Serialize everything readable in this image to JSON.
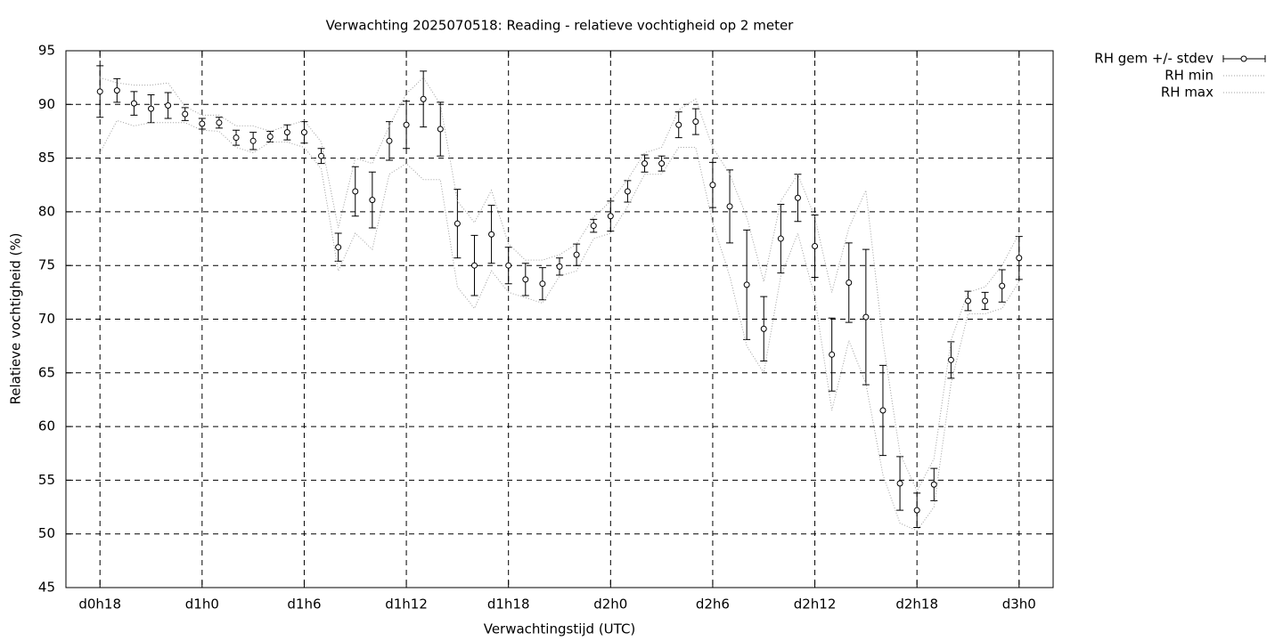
{
  "chart_data": {
    "type": "line",
    "title": "Verwachting 2025070518: Reading - relatieve vochtigheid op 2 meter",
    "xlabel": "Verwachtingstijd (UTC)",
    "ylabel": "Relatieve vochtigheid (%)",
    "x": [
      18,
      19,
      20,
      21,
      22,
      23,
      24,
      25,
      26,
      27,
      28,
      29,
      30,
      31,
      32,
      33,
      34,
      35,
      36,
      37,
      38,
      39,
      40,
      41,
      42,
      43,
      44,
      45,
      46,
      47,
      48,
      49,
      50,
      51,
      52,
      53,
      54,
      55,
      56,
      57,
      58,
      59,
      60,
      61,
      62,
      63,
      64,
      65,
      66,
      67,
      68,
      69,
      70,
      71,
      72
    ],
    "series": [
      {
        "name": "RH gem +/- stdev",
        "color": "#000000",
        "style": "errorbars",
        "values": [
          91.2,
          91.3,
          90.1,
          89.6,
          89.9,
          89.1,
          88.2,
          88.3,
          86.9,
          86.6,
          87.0,
          87.4,
          87.4,
          85.2,
          76.7,
          81.9,
          81.1,
          86.6,
          88.1,
          90.5,
          87.7,
          78.9,
          75.0,
          77.9,
          75.0,
          73.7,
          73.3,
          74.9,
          76.0,
          78.7,
          79.6,
          81.9,
          84.5,
          84.5,
          88.1,
          88.4,
          82.5,
          80.5,
          73.2,
          69.1,
          77.5,
          81.3,
          76.8,
          66.7,
          73.4,
          70.2,
          61.5,
          54.7,
          52.2,
          54.6,
          66.2,
          71.7,
          71.7,
          73.1,
          75.7
        ],
        "errors": [
          2.4,
          1.1,
          1.1,
          1.3,
          1.2,
          0.6,
          0.5,
          0.5,
          0.7,
          0.8,
          0.5,
          0.7,
          1.0,
          0.7,
          1.3,
          2.3,
          2.6,
          1.8,
          2.2,
          2.6,
          2.5,
          3.2,
          2.8,
          2.7,
          1.7,
          1.5,
          1.5,
          0.8,
          1.0,
          0.6,
          1.4,
          1.0,
          0.8,
          0.7,
          1.2,
          1.2,
          2.1,
          3.4,
          5.1,
          3.0,
          3.2,
          2.2,
          2.9,
          3.4,
          3.7,
          6.3,
          4.2,
          2.5,
          1.6,
          1.5,
          1.7,
          0.9,
          0.8,
          1.5,
          2.0
        ]
      },
      {
        "name": "RH min",
        "color": "#a0a0a0",
        "style": "dotted",
        "values": [
          85.5,
          88.5,
          88.0,
          88.3,
          88.3,
          88.3,
          87.6,
          87.5,
          86.0,
          85.5,
          86.5,
          86.5,
          86.0,
          84.0,
          74.5,
          78.0,
          76.5,
          83.5,
          84.5,
          83.0,
          83.0,
          73.0,
          71.0,
          74.5,
          72.5,
          72.0,
          71.5,
          74.0,
          74.5,
          77.5,
          78.0,
          80.5,
          83.5,
          83.5,
          86.0,
          86.0,
          79.0,
          74.0,
          67.5,
          65.0,
          74.0,
          78.0,
          72.0,
          61.5,
          68.0,
          64.0,
          55.5,
          51.0,
          50.3,
          52.5,
          64.0,
          70.5,
          70.5,
          71.0,
          73.5
        ]
      },
      {
        "name": "RH max",
        "color": "#a0a0a0",
        "style": "dotted",
        "values": [
          92.5,
          92.0,
          91.8,
          91.8,
          92.0,
          89.8,
          89.0,
          89.0,
          88.0,
          88.0,
          87.5,
          88.0,
          88.5,
          86.5,
          78.5,
          85.0,
          84.5,
          88.0,
          91.0,
          92.5,
          90.0,
          81.0,
          79.0,
          82.0,
          77.0,
          75.5,
          75.5,
          76.0,
          77.0,
          79.5,
          81.0,
          83.0,
          85.5,
          86.0,
          89.5,
          90.5,
          86.0,
          83.5,
          79.5,
          73.5,
          81.0,
          83.5,
          79.5,
          72.5,
          78.5,
          82.0,
          68.0,
          57.5,
          54.0,
          57.0,
          68.0,
          72.5,
          73.0,
          75.0,
          78.0
        ]
      }
    ],
    "xlim": [
      16,
      74
    ],
    "xticks": [
      {
        "value": 18,
        "label": "d0h18"
      },
      {
        "value": 24,
        "label": "d1h0"
      },
      {
        "value": 30,
        "label": "d1h6"
      },
      {
        "value": 36,
        "label": "d1h12"
      },
      {
        "value": 42,
        "label": "d1h18"
      },
      {
        "value": 48,
        "label": "d2h0"
      },
      {
        "value": 54,
        "label": "d2h6"
      },
      {
        "value": 60,
        "label": "d2h12"
      },
      {
        "value": 66,
        "label": "d2h18"
      },
      {
        "value": 72,
        "label": "d3h0"
      }
    ],
    "ylim": [
      45,
      95
    ],
    "yticks": [
      45,
      50,
      55,
      60,
      65,
      70,
      75,
      80,
      85,
      90,
      95
    ],
    "grid": true,
    "legend": "outside-right"
  }
}
